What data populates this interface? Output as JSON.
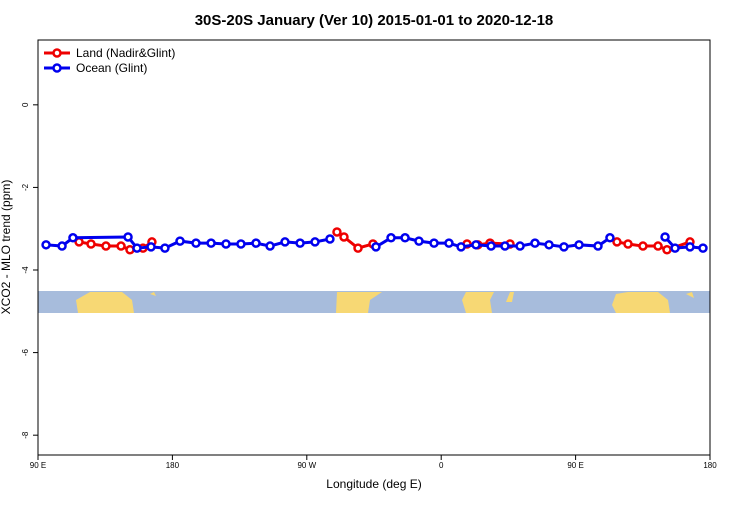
{
  "chart_data": {
    "type": "line",
    "title": "30S-20S January (Ver 10)   2015-01-01 to 2020-12-18",
    "xlabel": "Longitude (deg E)",
    "ylabel": "XCO2 - MLO trend (ppm)",
    "xlim": [
      90,
      540
    ],
    "ylim": [
      -8.48,
      1.57
    ],
    "xticks": [
      {
        "value": 90,
        "label": "90 E"
      },
      {
        "value": 180,
        "label": "180"
      },
      {
        "value": 270,
        "label": "90 W"
      },
      {
        "value": 360,
        "label": "0"
      },
      {
        "value": 450,
        "label": "90 E"
      },
      {
        "value": 540,
        "label": "180"
      }
    ],
    "yticks": [
      -8,
      -6,
      -4,
      -2,
      0
    ],
    "legend": "top-left",
    "series": [
      {
        "name": "Land (Nadir&Glint)",
        "color": "#ee0000",
        "x": [
          117.5,
          125.5,
          135.5,
          145.6,
          151.6,
          160.3,
          166.3,
          null,
          290.2,
          294.9,
          304.3,
          314.3,
          null,
          377.3,
          384.6,
          392.7,
          406.1,
          null,
          477.7,
          485.1,
          495.1,
          505.2,
          511.2,
          526.6
        ],
        "values": [
          -3.32,
          -3.37,
          -3.42,
          -3.42,
          -3.51,
          -3.47,
          -3.32,
          null,
          -3.08,
          -3.2,
          -3.47,
          -3.37,
          null,
          -3.37,
          -3.39,
          -3.35,
          -3.37,
          null,
          -3.32,
          -3.37,
          -3.42,
          -3.42,
          -3.51,
          -3.32
        ]
      },
      {
        "name": "Ocean (Glint)",
        "color": "#0000ee",
        "x": [
          95.4,
          106.1,
          113.4,
          150.3,
          156.3,
          165.7,
          175,
          185.1,
          195.8,
          205.9,
          215.9,
          225.9,
          236,
          245.4,
          255.4,
          265.5,
          275.5,
          285.5,
          null,
          316.3,
          326.4,
          335.8,
          345.1,
          355.2,
          365.2,
          373.3,
          383.3,
          393.4,
          402.7,
          412.8,
          422.8,
          432.2,
          442.2,
          452.3,
          465,
          473,
          null,
          509.9,
          516.6,
          526.6,
          535.3
        ],
        "values": [
          -3.39,
          -3.42,
          -3.22,
          -3.2,
          -3.47,
          -3.44,
          -3.47,
          -3.3,
          -3.35,
          -3.35,
          -3.37,
          -3.37,
          -3.35,
          -3.42,
          -3.32,
          -3.35,
          -3.32,
          -3.25,
          null,
          -3.44,
          -3.22,
          -3.22,
          -3.3,
          -3.35,
          -3.35,
          -3.44,
          -3.39,
          -3.42,
          -3.42,
          -3.42,
          -3.35,
          -3.39,
          -3.44,
          -3.39,
          -3.42,
          -3.22,
          null,
          -3.2,
          -3.47,
          -3.44,
          -3.47
        ]
      }
    ]
  }
}
